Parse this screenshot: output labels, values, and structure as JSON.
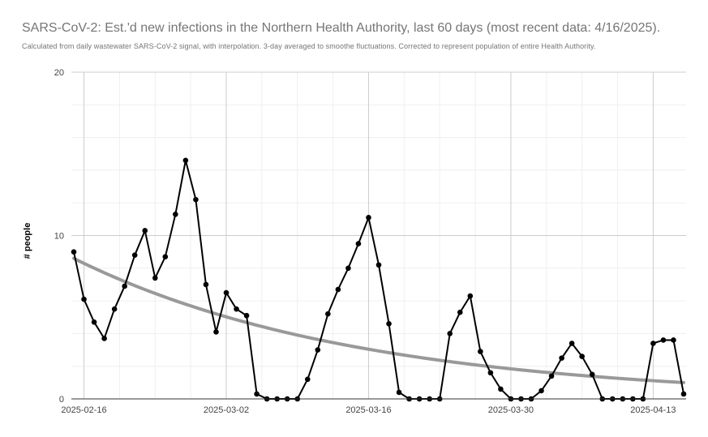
{
  "chart_data": {
    "type": "line",
    "title": "SARS-CoV-2: Est.'d new infections in the Northern Health Authority, last 60 days (most recent data: 4/16/2025).",
    "subtitle": "Calculated from daily wastewater SARS-CoV-2 signal, with interpolation. 3-day averaged to smoothe fluctuations. Corrected to represent population of entire Health Authority.",
    "xlabel": "",
    "ylabel": "# people",
    "x_start": "2025-02-15",
    "x_end": "2025-04-16",
    "ylim": [
      0,
      20
    ],
    "y_ticks": [
      "0",
      "10",
      "20"
    ],
    "x_ticks": [
      "2025-02-16",
      "2025-03-02",
      "2025-03-16",
      "2025-03-30",
      "2025-04-13"
    ],
    "grid": true,
    "series": [
      {
        "values": [
          9.0,
          6.1,
          4.7,
          3.7,
          5.5,
          6.9,
          8.8,
          10.3,
          7.4,
          8.7,
          11.3,
          14.6,
          12.2,
          7.0,
          4.1,
          6.5,
          5.5,
          5.1,
          0.3,
          0.0,
          0.0,
          0.0,
          0.0,
          1.2,
          3.0,
          5.2,
          6.7,
          8.0,
          9.5,
          11.1,
          8.2,
          4.6,
          0.4,
          0.0,
          0.0,
          0.0,
          0.0,
          4.0,
          5.3,
          6.3,
          2.9,
          1.6,
          0.6,
          0.0,
          0.0,
          0.0,
          0.5,
          1.4,
          2.5,
          3.4,
          2.6,
          1.5,
          0.0,
          0.0,
          0.0,
          0.0,
          0.0,
          3.4,
          3.6,
          3.6,
          0.3
        ],
        "color": "#000000"
      },
      {
        "trendline": true,
        "type": "exponential",
        "start_value": 8.6,
        "end_value": 1.0,
        "color": "#999999"
      }
    ]
  }
}
